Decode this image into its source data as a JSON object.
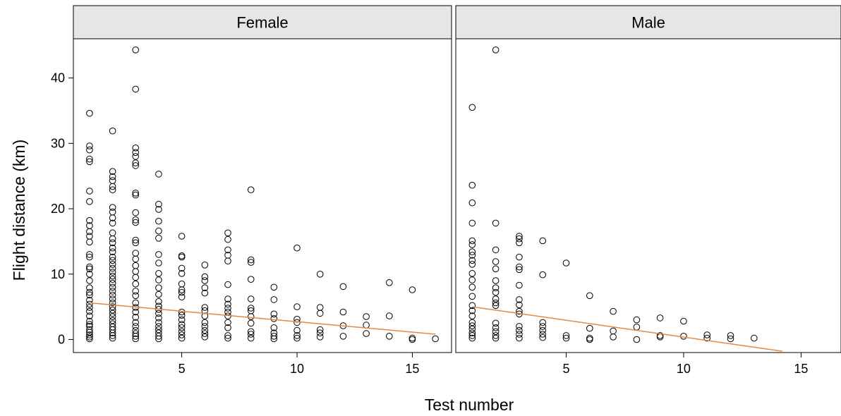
{
  "chart_data": {
    "type": "scatter",
    "xlabel": "Test number",
    "ylabel": "Flight distance (km)",
    "xlim": [
      0.3,
      16.7
    ],
    "ylim": [
      -2,
      46
    ],
    "xticks": [
      5,
      10,
      15
    ],
    "yticks": [
      0,
      10,
      20,
      30,
      40
    ],
    "grid": false,
    "trend_color": "#e08a4a",
    "panels": [
      {
        "strip": "Female",
        "trend": {
          "x": [
            1,
            16
          ],
          "y": [
            5.6,
            0.8
          ]
        },
        "points": [
          [
            1,
            34.6
          ],
          [
            1,
            29.6
          ],
          [
            1,
            29.0
          ],
          [
            1,
            27.6
          ],
          [
            1,
            27.2
          ],
          [
            1,
            22.7
          ],
          [
            1,
            21.1
          ],
          [
            1,
            18.2
          ],
          [
            1,
            17.4
          ],
          [
            1,
            16.5
          ],
          [
            1,
            15.8
          ],
          [
            1,
            14.9
          ],
          [
            1,
            13.0
          ],
          [
            1,
            12.6
          ],
          [
            1,
            11.1
          ],
          [
            1,
            10.8
          ],
          [
            1,
            10.0
          ],
          [
            1,
            9.0
          ],
          [
            1,
            7.9
          ],
          [
            1,
            7.2
          ],
          [
            1,
            6.8
          ],
          [
            1,
            6.0
          ],
          [
            1,
            5.4
          ],
          [
            1,
            4.9
          ],
          [
            1,
            4.3
          ],
          [
            1,
            3.6
          ],
          [
            1,
            2.8
          ],
          [
            1,
            2.3
          ],
          [
            1,
            2.0
          ],
          [
            1,
            1.5
          ],
          [
            1,
            1.1
          ],
          [
            1,
            0.7
          ],
          [
            1,
            0.4
          ],
          [
            1,
            0.1
          ],
          [
            2,
            31.9
          ],
          [
            2,
            25.7
          ],
          [
            2,
            24.9
          ],
          [
            2,
            24.3
          ],
          [
            2,
            23.4
          ],
          [
            2,
            22.9
          ],
          [
            2,
            20.2
          ],
          [
            2,
            19.5
          ],
          [
            2,
            18.6
          ],
          [
            2,
            17.8
          ],
          [
            2,
            16.3
          ],
          [
            2,
            15.4
          ],
          [
            2,
            14.8
          ],
          [
            2,
            14.0
          ],
          [
            2,
            13.4
          ],
          [
            2,
            12.6
          ],
          [
            2,
            12.1
          ],
          [
            2,
            11.5
          ],
          [
            2,
            10.9
          ],
          [
            2,
            10.3
          ],
          [
            2,
            9.7
          ],
          [
            2,
            9.2
          ],
          [
            2,
            8.6
          ],
          [
            2,
            8.0
          ],
          [
            2,
            7.4
          ],
          [
            2,
            6.8
          ],
          [
            2,
            6.2
          ],
          [
            2,
            5.6
          ],
          [
            2,
            5.0
          ],
          [
            2,
            4.5
          ],
          [
            2,
            4.0
          ],
          [
            2,
            3.5
          ],
          [
            2,
            2.9
          ],
          [
            2,
            2.4
          ],
          [
            2,
            1.9
          ],
          [
            2,
            1.5
          ],
          [
            2,
            1.0
          ],
          [
            2,
            0.6
          ],
          [
            2,
            0.2
          ],
          [
            3,
            44.3
          ],
          [
            3,
            38.3
          ],
          [
            3,
            29.3
          ],
          [
            3,
            28.6
          ],
          [
            3,
            28.0
          ],
          [
            3,
            27.0
          ],
          [
            3,
            26.6
          ],
          [
            3,
            22.4
          ],
          [
            3,
            22.1
          ],
          [
            3,
            19.4
          ],
          [
            3,
            18.3
          ],
          [
            3,
            17.9
          ],
          [
            3,
            15.2
          ],
          [
            3,
            14.8
          ],
          [
            3,
            13.2
          ],
          [
            3,
            12.3
          ],
          [
            3,
            11.3
          ],
          [
            3,
            10.4
          ],
          [
            3,
            9.5
          ],
          [
            3,
            8.5
          ],
          [
            3,
            7.4
          ],
          [
            3,
            6.7
          ],
          [
            3,
            5.6
          ],
          [
            3,
            4.9
          ],
          [
            3,
            4.2
          ],
          [
            3,
            3.4
          ],
          [
            3,
            2.6
          ],
          [
            3,
            2.0
          ],
          [
            3,
            1.4
          ],
          [
            3,
            0.9
          ],
          [
            3,
            0.5
          ],
          [
            3,
            0.1
          ],
          [
            4,
            25.3
          ],
          [
            4,
            20.7
          ],
          [
            4,
            19.9
          ],
          [
            4,
            18.1
          ],
          [
            4,
            16.6
          ],
          [
            4,
            15.5
          ],
          [
            4,
            13.0
          ],
          [
            4,
            11.7
          ],
          [
            4,
            10.1
          ],
          [
            4,
            9.1
          ],
          [
            4,
            7.9
          ],
          [
            4,
            6.9
          ],
          [
            4,
            5.8
          ],
          [
            4,
            5.1
          ],
          [
            4,
            4.6
          ],
          [
            4,
            4.0
          ],
          [
            4,
            3.3
          ],
          [
            4,
            2.6
          ],
          [
            4,
            2.0
          ],
          [
            4,
            1.5
          ],
          [
            4,
            1.0
          ],
          [
            4,
            0.5
          ],
          [
            4,
            0.1
          ],
          [
            5,
            15.8
          ],
          [
            5,
            12.8
          ],
          [
            5,
            12.6
          ],
          [
            5,
            10.9
          ],
          [
            5,
            10.1
          ],
          [
            5,
            8.5
          ],
          [
            5,
            7.6
          ],
          [
            5,
            7.2
          ],
          [
            5,
            6.5
          ],
          [
            5,
            4.2
          ],
          [
            5,
            3.7
          ],
          [
            5,
            3.0
          ],
          [
            5,
            2.3
          ],
          [
            5,
            1.8
          ],
          [
            5,
            1.2
          ],
          [
            5,
            0.7
          ],
          [
            5,
            0.2
          ],
          [
            6,
            11.4
          ],
          [
            6,
            9.6
          ],
          [
            6,
            9.0
          ],
          [
            6,
            7.9
          ],
          [
            6,
            7.1
          ],
          [
            6,
            4.9
          ],
          [
            6,
            4.4
          ],
          [
            6,
            3.6
          ],
          [
            6,
            2.6
          ],
          [
            6,
            2.0
          ],
          [
            6,
            1.4
          ],
          [
            6,
            0.9
          ],
          [
            6,
            0.4
          ],
          [
            7,
            16.3
          ],
          [
            7,
            15.3
          ],
          [
            7,
            13.7
          ],
          [
            7,
            12.9
          ],
          [
            7,
            12.0
          ],
          [
            7,
            8.4
          ],
          [
            7,
            6.2
          ],
          [
            7,
            5.4
          ],
          [
            7,
            4.8
          ],
          [
            7,
            4.2
          ],
          [
            7,
            3.6
          ],
          [
            7,
            2.6
          ],
          [
            7,
            1.8
          ],
          [
            7,
            0.6
          ],
          [
            7,
            0.2
          ],
          [
            8,
            22.9
          ],
          [
            8,
            12.2
          ],
          [
            8,
            11.8
          ],
          [
            8,
            9.2
          ],
          [
            8,
            6.2
          ],
          [
            8,
            4.8
          ],
          [
            8,
            4.4
          ],
          [
            8,
            3.5
          ],
          [
            8,
            2.5
          ],
          [
            8,
            1.2
          ],
          [
            8,
            0.8
          ],
          [
            8,
            0.2
          ],
          [
            9,
            8.0
          ],
          [
            9,
            6.1
          ],
          [
            9,
            3.9
          ],
          [
            9,
            3.2
          ],
          [
            9,
            1.8
          ],
          [
            9,
            1.0
          ],
          [
            9,
            0.5
          ],
          [
            9,
            0.1
          ],
          [
            10,
            14.0
          ],
          [
            10,
            5.0
          ],
          [
            10,
            3.1
          ],
          [
            10,
            2.6
          ],
          [
            10,
            1.4
          ],
          [
            10,
            0.6
          ],
          [
            10,
            0.2
          ],
          [
            11,
            10.0
          ],
          [
            11,
            4.9
          ],
          [
            11,
            4.0
          ],
          [
            11,
            1.5
          ],
          [
            11,
            1.0
          ],
          [
            11,
            0.4
          ],
          [
            12,
            8.1
          ],
          [
            12,
            4.2
          ],
          [
            12,
            2.1
          ],
          [
            12,
            0.5
          ],
          [
            13,
            3.5
          ],
          [
            13,
            2.2
          ],
          [
            13,
            0.9
          ],
          [
            14,
            8.7
          ],
          [
            14,
            3.6
          ],
          [
            14,
            0.5
          ],
          [
            15,
            7.6
          ],
          [
            15,
            0.2
          ],
          [
            15,
            0.0
          ],
          [
            16,
            0.1
          ]
        ]
      },
      {
        "strip": "Male",
        "trend": {
          "x": [
            1,
            14.2
          ],
          "y": [
            5.0,
            -1.8
          ]
        },
        "points": [
          [
            1,
            35.5
          ],
          [
            1,
            23.6
          ],
          [
            1,
            20.9
          ],
          [
            1,
            17.8
          ],
          [
            1,
            15.1
          ],
          [
            1,
            14.5
          ],
          [
            1,
            13.4
          ],
          [
            1,
            12.9
          ],
          [
            1,
            12.1
          ],
          [
            1,
            11.5
          ],
          [
            1,
            10.1
          ],
          [
            1,
            9.1
          ],
          [
            1,
            8.0
          ],
          [
            1,
            6.6
          ],
          [
            1,
            5.2
          ],
          [
            1,
            4.4
          ],
          [
            1,
            3.6
          ],
          [
            1,
            2.6
          ],
          [
            1,
            2.1
          ],
          [
            1,
            1.6
          ],
          [
            1,
            1.0
          ],
          [
            1,
            0.6
          ],
          [
            1,
            0.2
          ],
          [
            2,
            44.3
          ],
          [
            2,
            17.8
          ],
          [
            2,
            13.7
          ],
          [
            2,
            11.9
          ],
          [
            2,
            10.8
          ],
          [
            2,
            9.0
          ],
          [
            2,
            7.9
          ],
          [
            2,
            7.2
          ],
          [
            2,
            6.2
          ],
          [
            2,
            5.6
          ],
          [
            2,
            5.2
          ],
          [
            2,
            2.5
          ],
          [
            2,
            1.8
          ],
          [
            2,
            1.2
          ],
          [
            2,
            0.6
          ],
          [
            2,
            0.2
          ],
          [
            3,
            15.8
          ],
          [
            3,
            15.4
          ],
          [
            3,
            14.8
          ],
          [
            3,
            12.6
          ],
          [
            3,
            11.1
          ],
          [
            3,
            10.7
          ],
          [
            3,
            8.3
          ],
          [
            3,
            6.1
          ],
          [
            3,
            5.3
          ],
          [
            3,
            4.3
          ],
          [
            3,
            3.9
          ],
          [
            3,
            2.0
          ],
          [
            3,
            1.4
          ],
          [
            3,
            0.8
          ],
          [
            3,
            0.2
          ],
          [
            4,
            15.1
          ],
          [
            4,
            9.9
          ],
          [
            4,
            2.6
          ],
          [
            4,
            2.0
          ],
          [
            4,
            1.4
          ],
          [
            4,
            0.8
          ],
          [
            4,
            0.3
          ],
          [
            5,
            11.7
          ],
          [
            5,
            0.6
          ],
          [
            5,
            0.2
          ],
          [
            6,
            6.7
          ],
          [
            6,
            1.7
          ],
          [
            6,
            0.2
          ],
          [
            6,
            0.0
          ],
          [
            7,
            4.3
          ],
          [
            7,
            1.3
          ],
          [
            7,
            0.4
          ],
          [
            8,
            3.0
          ],
          [
            8,
            1.9
          ],
          [
            8,
            0.0
          ],
          [
            9,
            3.3
          ],
          [
            9,
            0.6
          ],
          [
            9,
            0.4
          ],
          [
            10,
            2.8
          ],
          [
            10,
            0.5
          ],
          [
            11,
            0.7
          ],
          [
            11,
            0.2
          ],
          [
            12,
            0.6
          ],
          [
            12,
            0.1
          ],
          [
            13,
            0.2
          ]
        ]
      }
    ]
  }
}
